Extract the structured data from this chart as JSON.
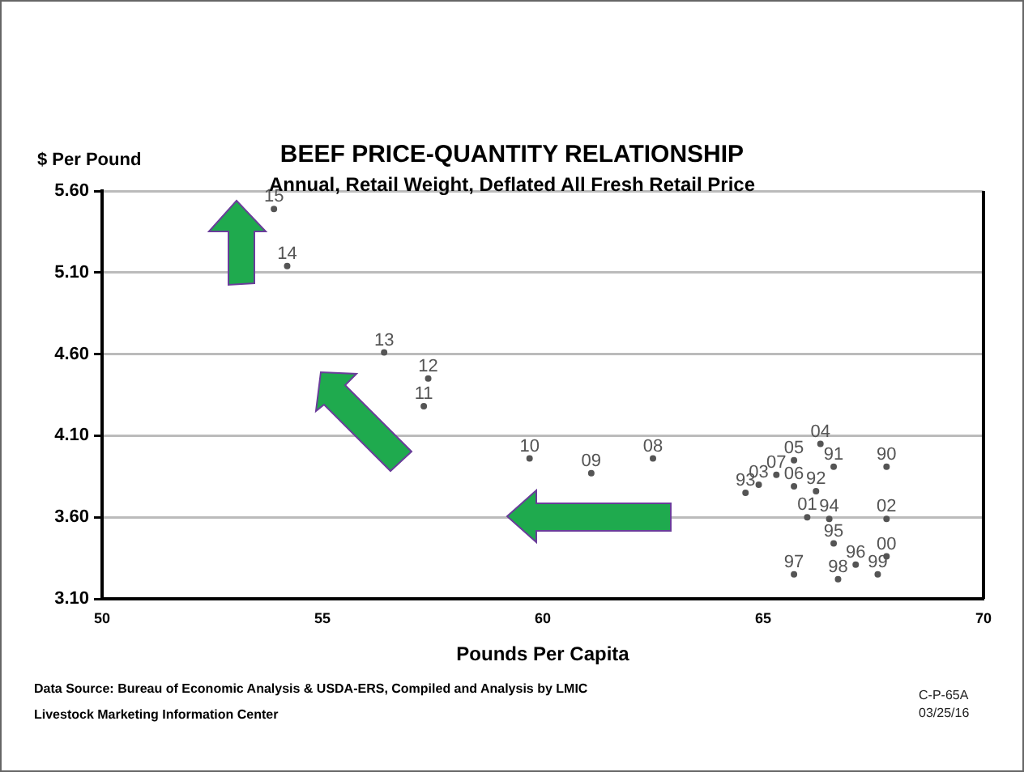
{
  "chart_data": {
    "type": "scatter",
    "title": "BEEF PRICE-QUANTITY RELATIONSHIP",
    "subtitle": "Annual, Retail Weight, Deflated All Fresh Retail Price",
    "xlabel": "Pounds Per Capita",
    "ylabel": "$ Per Pound",
    "x": [
      67.8,
      66.6,
      66.2,
      64.6,
      66.5,
      66.6,
      67.1,
      65.7,
      66.7,
      67.6,
      67.8,
      66.0,
      67.8,
      64.9,
      66.3,
      65.7,
      65.7,
      65.3,
      62.5,
      61.1,
      59.7,
      57.3,
      57.4,
      56.4,
      54.2,
      53.9
    ],
    "series": [
      {
        "color": "#555555",
        "values": [
          3.91,
          3.91,
          3.76,
          3.75,
          3.59,
          3.44,
          3.31,
          3.25,
          3.22,
          3.25,
          3.36,
          3.6,
          3.59,
          3.8,
          4.05,
          3.95,
          3.79,
          3.86,
          3.96,
          3.87,
          3.96,
          4.28,
          4.45,
          4.61,
          5.14,
          5.49
        ]
      }
    ],
    "marker": "circle",
    "xlim": [
      50,
      70
    ],
    "xticks": [
      50,
      55,
      60,
      65,
      70
    ],
    "ylim": [
      3.1,
      5.6
    ],
    "yticks": [
      {
        "value": 3.1,
        "label": "3.10"
      },
      {
        "value": 3.6,
        "label": "3.60"
      },
      {
        "value": 4.1,
        "label": "4.10"
      },
      {
        "value": 4.6,
        "label": "4.60"
      },
      {
        "value": 5.1,
        "label": "5.10"
      },
      {
        "value": 5.6,
        "label": "5.60"
      }
    ],
    "grid": "y",
    "legend": false,
    "annotations": [
      "Data Source:  Bureau of Economic Analysis & USDA-ERS, Compiled and Analysis by LMIC",
      "Livestock Marketing Information Center",
      "C-P-65A",
      "03/25/16",
      {
        "text": "90",
        "x": 67.8,
        "y": 3.91
      },
      {
        "text": "91",
        "x": 66.6,
        "y": 3.91
      },
      {
        "text": "92",
        "x": 66.2,
        "y": 3.76
      },
      {
        "text": "93",
        "x": 64.6,
        "y": 3.75
      },
      {
        "text": "94",
        "x": 66.5,
        "y": 3.59
      },
      {
        "text": "95",
        "x": 66.6,
        "y": 3.44
      },
      {
        "text": "96",
        "x": 67.1,
        "y": 3.31
      },
      {
        "text": "97",
        "x": 65.7,
        "y": 3.25
      },
      {
        "text": "98",
        "x": 66.7,
        "y": 3.22
      },
      {
        "text": "99",
        "x": 67.6,
        "y": 3.25
      },
      {
        "text": "00",
        "x": 67.8,
        "y": 3.36
      },
      {
        "text": "01",
        "x": 66.0,
        "y": 3.6
      },
      {
        "text": "02",
        "x": 67.8,
        "y": 3.59
      },
      {
        "text": "03",
        "x": 64.9,
        "y": 3.8
      },
      {
        "text": "04",
        "x": 66.3,
        "y": 4.05
      },
      {
        "text": "05",
        "x": 65.7,
        "y": 3.95
      },
      {
        "text": "06",
        "x": 65.7,
        "y": 3.79
      },
      {
        "text": "07",
        "x": 65.3,
        "y": 3.86
      },
      {
        "text": "08",
        "x": 62.5,
        "y": 3.96
      },
      {
        "text": "09",
        "x": 61.1,
        "y": 3.87
      },
      {
        "text": "10",
        "x": 59.7,
        "y": 3.96
      },
      {
        "text": "11",
        "x": 57.3,
        "y": 4.28
      },
      {
        "text": "12",
        "x": 57.4,
        "y": 4.45
      },
      {
        "text": "13",
        "x": 56.4,
        "y": 4.61
      },
      {
        "text": "14",
        "x": 54.2,
        "y": 5.14
      },
      {
        "text": "15",
        "x": 53.9,
        "y": 5.49
      }
    ]
  }
}
